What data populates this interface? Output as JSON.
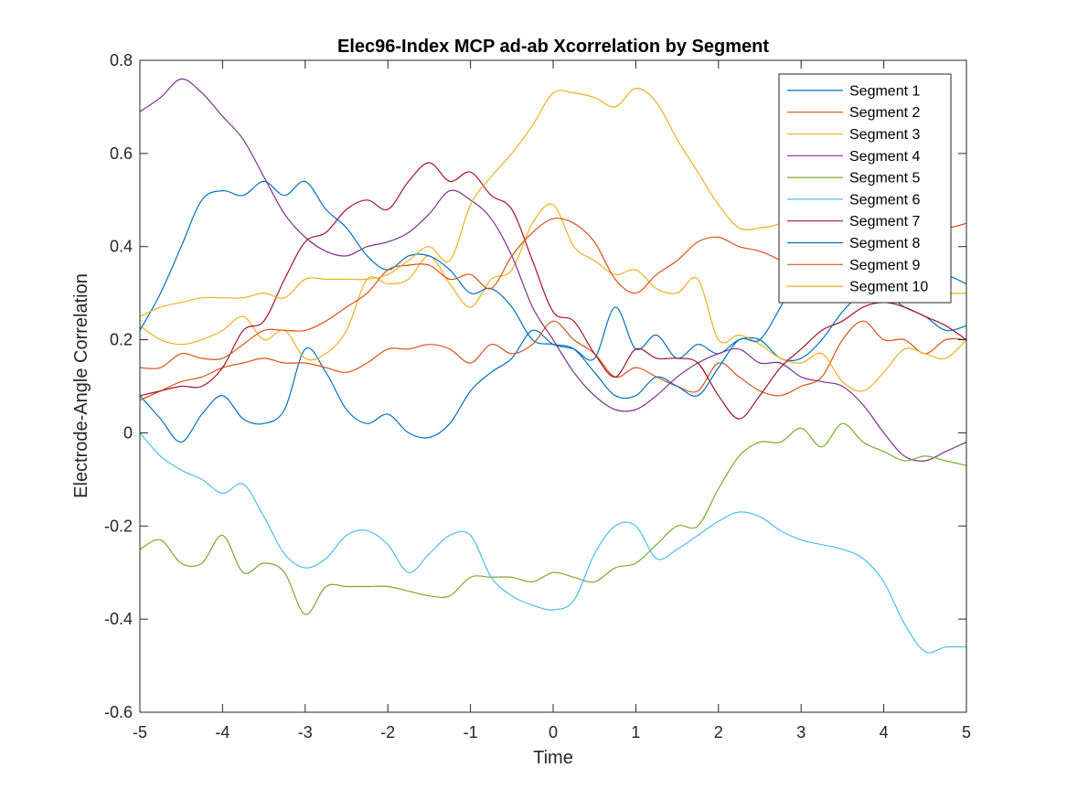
{
  "chart_data": {
    "type": "line",
    "title": "Elec96-Index MCP ad-ab Xcorrelation by Segment",
    "xlabel": "Time",
    "ylabel": "Electrode-Angle Correlation",
    "xlim": [
      -5,
      5
    ],
    "ylim": [
      -0.6,
      0.8
    ],
    "xticks": [
      -5,
      -4,
      -3,
      -2,
      -1,
      0,
      1,
      2,
      3,
      4,
      5
    ],
    "yticks": [
      -0.6,
      -0.4,
      -0.2,
      0,
      0.2,
      0.4,
      0.6,
      0.8
    ],
    "xtick_labels": [
      "-5",
      "-4",
      "-3",
      "-2",
      "-1",
      "0",
      "1",
      "2",
      "3",
      "4",
      "5"
    ],
    "ytick_labels": [
      "-0.6",
      "-0.4",
      "-0.2",
      "0",
      "0.2",
      "0.4",
      "0.6",
      "0.8"
    ],
    "grid": false,
    "legend_position": "top-right",
    "x": [
      -5,
      -4.75,
      -4.5,
      -4.25,
      -4,
      -3.75,
      -3.5,
      -3.25,
      -3,
      -2.75,
      -2.5,
      -2.25,
      -2,
      -1.75,
      -1.5,
      -1.25,
      -1,
      -0.75,
      -0.5,
      -0.25,
      0,
      0.25,
      0.5,
      0.75,
      1,
      1.25,
      1.5,
      1.75,
      2,
      2.25,
      2.5,
      2.75,
      3,
      3.25,
      3.5,
      3.75,
      4,
      4.25,
      4.5,
      4.75,
      5
    ],
    "series": [
      {
        "name": "Segment 1",
        "color": "#0072BD",
        "values": [
          0.08,
          0.03,
          -0.02,
          0.04,
          0.08,
          0.03,
          0.02,
          0.05,
          0.18,
          0.13,
          0.05,
          0.02,
          0.04,
          0.0,
          -0.01,
          0.02,
          0.09,
          0.13,
          0.16,
          0.22,
          0.19,
          0.18,
          0.16,
          0.27,
          0.18,
          0.21,
          0.16,
          0.19,
          0.17,
          0.2,
          0.2,
          0.16,
          0.16,
          0.2,
          0.26,
          0.3,
          0.3,
          0.27,
          0.25,
          0.22,
          0.23
        ]
      },
      {
        "name": "Segment 2",
        "color": "#D95319",
        "values": [
          0.07,
          0.09,
          0.11,
          0.12,
          0.14,
          0.15,
          0.16,
          0.15,
          0.15,
          0.14,
          0.13,
          0.15,
          0.18,
          0.18,
          0.19,
          0.18,
          0.15,
          0.19,
          0.17,
          0.19,
          0.24,
          0.2,
          0.17,
          0.12,
          0.14,
          0.12,
          0.1,
          0.09,
          0.15,
          0.12,
          0.09,
          0.08,
          0.1,
          0.12,
          0.2,
          0.24,
          0.2,
          0.2,
          0.17,
          0.2,
          0.2
        ]
      },
      {
        "name": "Segment 3",
        "color": "#EDB120",
        "values": [
          0.23,
          0.2,
          0.19,
          0.2,
          0.22,
          0.25,
          0.2,
          0.22,
          0.16,
          0.17,
          0.22,
          0.33,
          0.32,
          0.33,
          0.38,
          0.32,
          0.27,
          0.33,
          0.35,
          0.45,
          0.49,
          0.4,
          0.37,
          0.34,
          0.35,
          0.31,
          0.3,
          0.33,
          0.2,
          0.21,
          0.19,
          0.16,
          0.15,
          0.17,
          0.11,
          0.09,
          0.13,
          0.18,
          0.17,
          0.16,
          0.2
        ]
      },
      {
        "name": "Segment 4",
        "color": "#7E2F8E",
        "values": [
          0.69,
          0.72,
          0.76,
          0.73,
          0.68,
          0.63,
          0.55,
          0.47,
          0.42,
          0.39,
          0.38,
          0.4,
          0.41,
          0.43,
          0.47,
          0.52,
          0.5,
          0.46,
          0.38,
          0.27,
          0.2,
          0.13,
          0.08,
          0.05,
          0.05,
          0.08,
          0.12,
          0.15,
          0.17,
          0.18,
          0.15,
          0.15,
          0.12,
          0.11,
          0.1,
          0.06,
          0.0,
          -0.05,
          -0.06,
          -0.04,
          -0.02
        ]
      },
      {
        "name": "Segment 5",
        "color": "#77AC30",
        "values": [
          -0.25,
          -0.23,
          -0.28,
          -0.28,
          -0.22,
          -0.3,
          -0.28,
          -0.3,
          -0.39,
          -0.33,
          -0.33,
          -0.33,
          -0.33,
          -0.34,
          -0.35,
          -0.35,
          -0.31,
          -0.31,
          -0.31,
          -0.32,
          -0.3,
          -0.31,
          -0.32,
          -0.29,
          -0.28,
          -0.24,
          -0.2,
          -0.2,
          -0.12,
          -0.05,
          -0.02,
          -0.02,
          0.01,
          -0.03,
          0.02,
          -0.02,
          -0.04,
          -0.06,
          -0.05,
          -0.06,
          -0.07
        ]
      },
      {
        "name": "Segment 6",
        "color": "#4DBEEE",
        "values": [
          0.0,
          -0.05,
          -0.08,
          -0.1,
          -0.13,
          -0.11,
          -0.18,
          -0.26,
          -0.29,
          -0.27,
          -0.22,
          -0.21,
          -0.24,
          -0.3,
          -0.26,
          -0.22,
          -0.22,
          -0.31,
          -0.35,
          -0.37,
          -0.38,
          -0.36,
          -0.26,
          -0.2,
          -0.2,
          -0.27,
          -0.25,
          -0.22,
          -0.19,
          -0.17,
          -0.18,
          -0.21,
          -0.23,
          -0.24,
          -0.25,
          -0.27,
          -0.32,
          -0.41,
          -0.47,
          -0.46,
          -0.46
        ]
      },
      {
        "name": "Segment 7",
        "color": "#A2142F",
        "values": [
          0.08,
          0.09,
          0.1,
          0.1,
          0.14,
          0.22,
          0.24,
          0.33,
          0.41,
          0.43,
          0.48,
          0.5,
          0.48,
          0.54,
          0.58,
          0.54,
          0.56,
          0.51,
          0.48,
          0.37,
          0.26,
          0.24,
          0.17,
          0.12,
          0.18,
          0.16,
          0.16,
          0.15,
          0.08,
          0.03,
          0.08,
          0.14,
          0.18,
          0.22,
          0.24,
          0.27,
          0.28,
          0.27,
          0.25,
          0.23,
          0.2
        ]
      },
      {
        "name": "Segment 8",
        "color": "#0072BD",
        "values": [
          0.22,
          0.3,
          0.4,
          0.5,
          0.52,
          0.51,
          0.54,
          0.51,
          0.54,
          0.48,
          0.44,
          0.38,
          0.35,
          0.38,
          0.38,
          0.35,
          0.3,
          0.31,
          0.27,
          0.2,
          0.19,
          0.18,
          0.13,
          0.08,
          0.08,
          0.12,
          0.1,
          0.08,
          0.14,
          0.2,
          0.2,
          0.27,
          0.35,
          0.35,
          0.36,
          0.35,
          0.33,
          0.34,
          0.35,
          0.34,
          0.32
        ]
      },
      {
        "name": "Segment 9",
        "color": "#D95319",
        "values": [
          0.14,
          0.14,
          0.17,
          0.16,
          0.16,
          0.19,
          0.22,
          0.22,
          0.22,
          0.24,
          0.27,
          0.3,
          0.35,
          0.36,
          0.36,
          0.33,
          0.34,
          0.31,
          0.38,
          0.43,
          0.46,
          0.45,
          0.41,
          0.33,
          0.3,
          0.34,
          0.37,
          0.41,
          0.42,
          0.4,
          0.39,
          0.37,
          0.34,
          0.32,
          0.36,
          0.41,
          0.42,
          0.43,
          0.45,
          0.44,
          0.45
        ]
      },
      {
        "name": "Segment 10",
        "color": "#EDB120",
        "values": [
          0.25,
          0.27,
          0.28,
          0.29,
          0.29,
          0.29,
          0.3,
          0.29,
          0.33,
          0.33,
          0.33,
          0.33,
          0.34,
          0.37,
          0.4,
          0.37,
          0.49,
          0.55,
          0.6,
          0.66,
          0.73,
          0.73,
          0.72,
          0.7,
          0.74,
          0.71,
          0.63,
          0.56,
          0.49,
          0.44,
          0.44,
          0.45,
          0.48,
          0.45,
          0.4,
          0.37,
          0.34,
          0.33,
          0.31,
          0.3,
          0.3
        ]
      }
    ]
  }
}
